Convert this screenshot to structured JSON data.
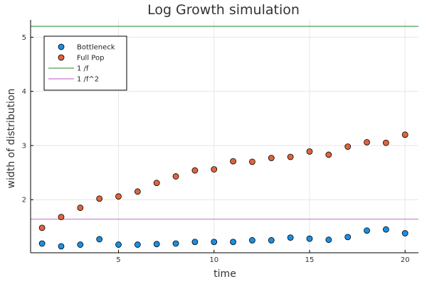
{
  "chart_data": {
    "type": "scatter",
    "title": "Log Growth simulation",
    "xlabel": "time",
    "ylabel": "width of distribution",
    "xlim": [
      0.4,
      20.7
    ],
    "ylim": [
      1.02,
      5.32
    ],
    "xticks": [
      5,
      10,
      15,
      20
    ],
    "yticks": [
      2,
      3,
      4,
      5
    ],
    "grid": true,
    "legend_position": "top-left",
    "x": [
      1,
      2,
      3,
      4,
      5,
      6,
      7,
      8,
      9,
      10,
      11,
      12,
      13,
      14,
      15,
      16,
      17,
      18,
      19,
      20
    ],
    "series": [
      {
        "name": "Bottleneck",
        "kind": "scatter",
        "color": "#1a8fe3",
        "values": [
          1.19,
          1.14,
          1.17,
          1.27,
          1.17,
          1.17,
          1.18,
          1.19,
          1.22,
          1.22,
          1.22,
          1.25,
          1.25,
          1.3,
          1.28,
          1.26,
          1.31,
          1.43,
          1.45,
          1.38
        ]
      },
      {
        "name": "Full Pop",
        "kind": "scatter",
        "color": "#e0643c",
        "values": [
          1.48,
          1.68,
          1.85,
          2.02,
          2.06,
          2.15,
          2.31,
          2.43,
          2.54,
          2.56,
          2.71,
          2.7,
          2.77,
          2.79,
          2.89,
          2.83,
          2.98,
          3.06,
          3.05,
          3.2
        ]
      },
      {
        "name": "1 /f",
        "kind": "hline",
        "color": "#4aa055",
        "value": 5.2
      },
      {
        "name": "1 /f^2",
        "kind": "hline",
        "color": "#c37bd4",
        "value": 1.64
      }
    ]
  }
}
